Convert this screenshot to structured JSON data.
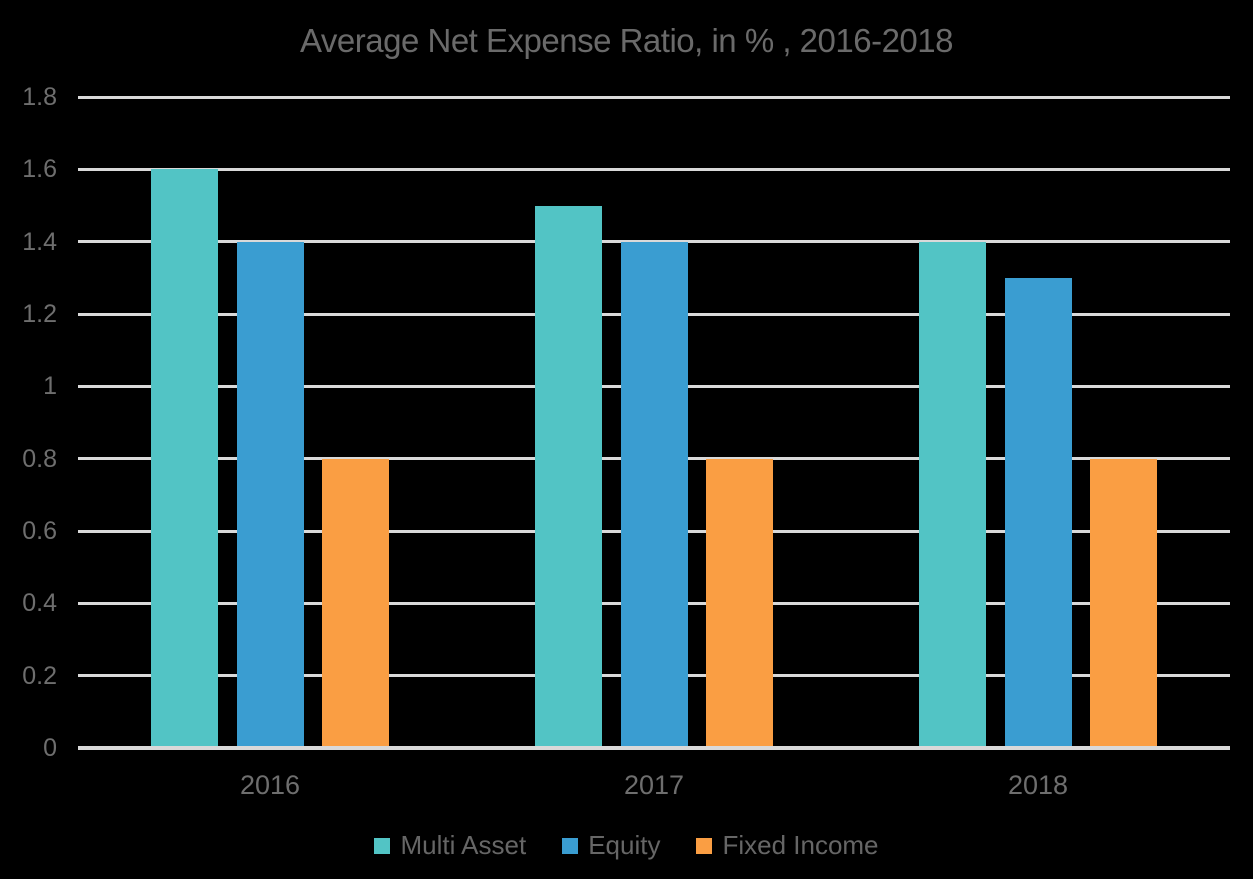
{
  "chart_data": {
    "type": "bar",
    "title": "Average Net Expense Ratio, in % , 2016-2018",
    "categories": [
      "2016",
      "2017",
      "2018"
    ],
    "series": [
      {
        "name": "Multi Asset",
        "color": "#52C4C5",
        "values": [
          1.6,
          1.5,
          1.4
        ]
      },
      {
        "name": "Equity",
        "color": "#3A9DD1",
        "values": [
          1.4,
          1.4,
          1.3
        ]
      },
      {
        "name": "Fixed Income",
        "color": "#FA9E43",
        "values": [
          0.8,
          0.8,
          0.8
        ]
      }
    ],
    "ylim": [
      0,
      1.8
    ],
    "ytick_step": 0.2,
    "ytick_labels": [
      "0",
      "0.2",
      "0.4",
      "0.6",
      "0.8",
      "1",
      "1.2",
      "1.4",
      "1.6",
      "1.8"
    ],
    "xlabel": "",
    "ylabel": "",
    "grid": true,
    "legend_position": "bottom"
  },
  "style": {
    "background": "#000000",
    "gridline_color": "#D9D9D9",
    "title_color": "#6A6A6A",
    "axis_text_color": "#6E6E6E",
    "legend_text_color": "#666666"
  }
}
